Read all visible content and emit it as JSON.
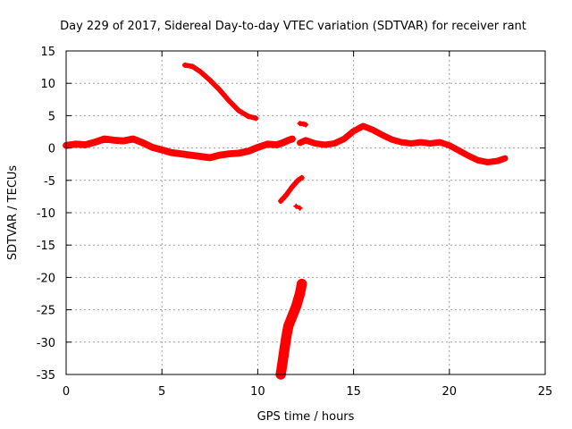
{
  "chart_data": {
    "type": "scatter",
    "title": "Day 229 of 2017, Sidereal Day-to-day VTEC variation (SDTVAR) for receiver rant",
    "xlabel": "GPS time / hours",
    "ylabel": "SDTVAR / TECUs",
    "xlim": [
      0,
      25
    ],
    "ylim": [
      -35,
      15
    ],
    "xticks": [
      0,
      5,
      10,
      15,
      20,
      25
    ],
    "yticks": [
      -35,
      -30,
      -25,
      -20,
      -15,
      -10,
      -5,
      0,
      5,
      10,
      15
    ],
    "grid": true,
    "series_color": "#ff0000",
    "series": [
      {
        "name": "main-trace",
        "band": 0.8,
        "points": [
          [
            0.0,
            0.4
          ],
          [
            0.5,
            0.6
          ],
          [
            1.0,
            0.5
          ],
          [
            1.5,
            0.9
          ],
          [
            2.0,
            1.4
          ],
          [
            2.5,
            1.2
          ],
          [
            3.0,
            1.1
          ],
          [
            3.5,
            1.4
          ],
          [
            4.0,
            0.8
          ],
          [
            4.5,
            0.1
          ],
          [
            5.0,
            -0.3
          ],
          [
            5.5,
            -0.7
          ],
          [
            6.0,
            -0.9
          ],
          [
            6.5,
            -1.1
          ],
          [
            7.0,
            -1.3
          ],
          [
            7.5,
            -1.5
          ],
          [
            8.0,
            -1.1
          ],
          [
            8.5,
            -0.9
          ],
          [
            9.0,
            -0.8
          ],
          [
            9.5,
            -0.5
          ],
          [
            10.0,
            0.1
          ],
          [
            10.5,
            0.6
          ],
          [
            11.0,
            0.5
          ],
          [
            11.3,
            0.8
          ],
          [
            11.6,
            1.2
          ],
          [
            11.8,
            1.4
          ]
        ]
      },
      {
        "name": "high-arc",
        "band": 0.5,
        "points": [
          [
            6.2,
            12.8
          ],
          [
            6.6,
            12.6
          ],
          [
            7.0,
            11.8
          ],
          [
            7.5,
            10.5
          ],
          [
            8.0,
            9.0
          ],
          [
            8.5,
            7.3
          ],
          [
            9.0,
            5.8
          ],
          [
            9.5,
            4.9
          ],
          [
            9.9,
            4.6
          ]
        ]
      },
      {
        "name": "mid-trace",
        "band": 0.7,
        "points": [
          [
            12.2,
            0.8
          ],
          [
            12.5,
            1.2
          ],
          [
            13.0,
            0.7
          ],
          [
            13.5,
            0.5
          ],
          [
            14.0,
            0.7
          ],
          [
            14.5,
            1.4
          ],
          [
            15.0,
            2.6
          ],
          [
            15.5,
            3.4
          ],
          [
            16.0,
            2.8
          ],
          [
            16.5,
            2.0
          ],
          [
            17.0,
            1.3
          ],
          [
            17.5,
            0.9
          ],
          [
            18.0,
            0.7
          ],
          [
            18.5,
            0.9
          ],
          [
            19.0,
            0.7
          ],
          [
            19.5,
            0.9
          ],
          [
            20.0,
            0.4
          ],
          [
            20.5,
            -0.4
          ],
          [
            21.0,
            -1.2
          ],
          [
            21.5,
            -1.9
          ],
          [
            22.0,
            -2.2
          ],
          [
            22.5,
            -2.0
          ],
          [
            22.9,
            -1.6
          ]
        ]
      },
      {
        "name": "short-segment-a",
        "band": 0.4,
        "points": [
          [
            12.2,
            3.8
          ],
          [
            12.4,
            3.7
          ],
          [
            12.5,
            3.6
          ]
        ]
      },
      {
        "name": "short-segment-b",
        "band": 0.5,
        "points": [
          [
            11.2,
            -8.2
          ],
          [
            11.5,
            -7.2
          ],
          [
            11.8,
            -6.0
          ],
          [
            12.1,
            -5.0
          ],
          [
            12.3,
            -4.6
          ]
        ]
      },
      {
        "name": "short-segment-c",
        "band": 0.3,
        "points": [
          [
            12.0,
            -9.0
          ],
          [
            12.2,
            -9.3
          ]
        ]
      },
      {
        "name": "steep-segment",
        "band": 1.3,
        "points": [
          [
            11.2,
            -35.0
          ],
          [
            11.3,
            -33.0
          ],
          [
            11.4,
            -31.0
          ],
          [
            11.5,
            -29.0
          ],
          [
            11.6,
            -27.5
          ],
          [
            11.8,
            -26.0
          ],
          [
            12.0,
            -24.5
          ],
          [
            12.2,
            -22.5
          ],
          [
            12.3,
            -21.0
          ]
        ]
      }
    ]
  }
}
